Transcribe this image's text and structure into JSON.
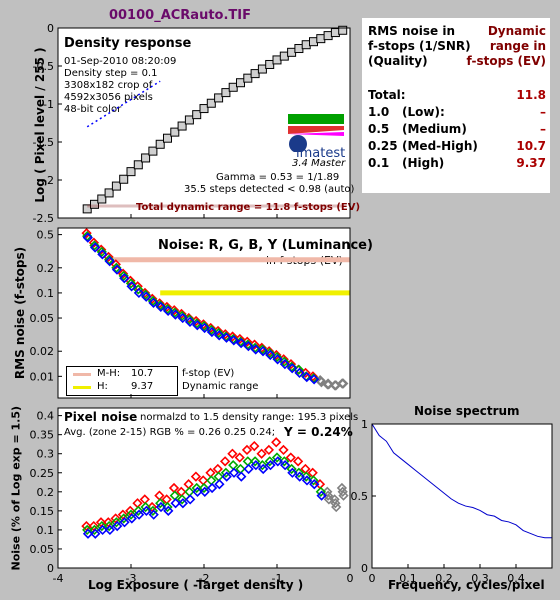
{
  "file_title": "00100_ACRauto.TIF",
  "colors": {
    "bg": "#c0c0c0",
    "title": "#6a0a6a",
    "darkred": "#800000",
    "value_red": "#aa0000"
  },
  "summary": {
    "header_left": [
      "RMS noise in",
      "f-stops (1/SNR)",
      "(Quality)"
    ],
    "header_right": [
      "Dynamic",
      "range in",
      "f-stops (EV)"
    ],
    "rows": [
      {
        "a": "Total:",
        "b": "",
        "v": "11.8"
      },
      {
        "a": "1.0",
        "b": "(Low):",
        "v": "–"
      },
      {
        "a": "0.5",
        "b": "(Medium)",
        "v": "–"
      },
      {
        "a": "0.25",
        "b": "(Med-High)",
        "v": "10.7"
      },
      {
        "a": "0.1",
        "b": "(High)",
        "v": "9.37"
      }
    ]
  },
  "panel1": {
    "heading": "Density response",
    "info": [
      "01-Sep-2010 08:20:09",
      "Density step = 0.1",
      "3308x182 crop of",
      "4592x3056 pixels",
      "48-bit color"
    ],
    "logo": "imatest",
    "logo_sub": "3.4  Master",
    "gamma": "Gamma = 0.53 = 1/1.89",
    "steps": "35.5 steps detected < 0.98 (auto)",
    "total_dr": "Total dynamic range = 11.8 f-stops (EV)",
    "ylabel": "Log ( Pixel level / 255 )"
  },
  "panel2": {
    "heading": "Noise: R, G, B, Y (Luminance)",
    "sub": "in f-stops (EV)",
    "ylabel": "RMS noise (f-stops)",
    "legend": [
      {
        "k": "M-H:",
        "v": "10.7",
        "color": "#f0b8a8"
      },
      {
        "k": "H:",
        "v": "9.37",
        "color": "#f0f000"
      }
    ],
    "legend_right": [
      "f-stop (EV)",
      "Dynamic range"
    ]
  },
  "panel3": {
    "heading": "Pixel noise",
    "line1": "normalzd to 1.5 density range: 195.3 pixels",
    "line2": "Avg. (zone 2-15) RGB % = 0.26  0.25  0.24;",
    "yval": "Y = 0.24%",
    "ylabel": "Noise (% of Log exp = 1.5)",
    "xlabel": "Log Exposure ( -Target density )"
  },
  "panel4": {
    "title": "Noise spectrum",
    "xlabel": "Frequency, cycles/pixel"
  },
  "chart_data": [
    {
      "type": "scatter",
      "title": "Density response",
      "ylabel": "Log ( Pixel level / 255 )",
      "xlim": [
        -4,
        0
      ],
      "ylim": [
        -2.5,
        0
      ],
      "yticks": [
        0,
        -0.5,
        -1,
        -1.5,
        -2,
        -2.5
      ],
      "density_x": [
        -3.6,
        -3.5,
        -3.4,
        -3.3,
        -3.2,
        -3.1,
        -3.0,
        -2.9,
        -2.8,
        -2.7,
        -2.6,
        -2.5,
        -2.4,
        -2.3,
        -2.2,
        -2.1,
        -2.0,
        -1.9,
        -1.8,
        -1.7,
        -1.6,
        -1.5,
        -1.4,
        -1.3,
        -1.2,
        -1.1,
        -1.0,
        -0.9,
        -0.8,
        -0.7,
        -0.6,
        -0.5,
        -0.4,
        -0.3,
        -0.2,
        -0.1
      ],
      "density_y": [
        -2.38,
        -2.32,
        -2.25,
        -2.17,
        -2.08,
        -1.99,
        -1.89,
        -1.8,
        -1.71,
        -1.62,
        -1.53,
        -1.45,
        -1.37,
        -1.29,
        -1.21,
        -1.14,
        -1.06,
        -0.99,
        -0.92,
        -0.85,
        -0.78,
        -0.72,
        -0.66,
        -0.6,
        -0.54,
        -0.48,
        -0.42,
        -0.37,
        -0.32,
        -0.27,
        -0.22,
        -0.18,
        -0.14,
        -0.1,
        -0.06,
        -0.03
      ],
      "fit_line": {
        "x": [
          -3.6,
          -2.6
        ],
        "y": [
          -1.3,
          -0.7
        ]
      }
    },
    {
      "type": "scatter",
      "title": "Noise: R, G, B, Y (Luminance)",
      "ylabel": "RMS noise (f-stops)",
      "yscale": "log",
      "xlim": [
        -4,
        0
      ],
      "yticks": [
        0.5,
        0.2,
        0.1,
        0.05,
        0.02,
        0.01
      ],
      "x": [
        -3.6,
        -3.5,
        -3.4,
        -3.3,
        -3.2,
        -3.1,
        -3.0,
        -2.9,
        -2.8,
        -2.7,
        -2.6,
        -2.5,
        -2.4,
        -2.3,
        -2.2,
        -2.1,
        -2.0,
        -1.9,
        -1.8,
        -1.7,
        -1.6,
        -1.5,
        -1.4,
        -1.3,
        -1.2,
        -1.1,
        -1.0,
        -0.9,
        -0.8,
        -0.7,
        -0.6,
        -0.5,
        -0.4,
        -0.3,
        -0.2,
        -0.1
      ],
      "series": [
        {
          "color": "#ff0000",
          "values": [
            0.52,
            0.4,
            0.33,
            0.27,
            0.22,
            0.17,
            0.14,
            0.12,
            0.1,
            0.085,
            0.075,
            0.068,
            0.062,
            0.056,
            0.05,
            0.046,
            0.042,
            0.038,
            0.035,
            0.032,
            0.03,
            0.028,
            0.026,
            0.024,
            0.022,
            0.02,
            0.018,
            0.016,
            0.014,
            0.012,
            0.011,
            0.01,
            0.009,
            0.008,
            0.0078,
            0.0082
          ]
        },
        {
          "color": "#00aa00",
          "values": [
            0.48,
            0.37,
            0.31,
            0.25,
            0.2,
            0.16,
            0.13,
            0.11,
            0.095,
            0.08,
            0.071,
            0.064,
            0.058,
            0.053,
            0.048,
            0.043,
            0.04,
            0.036,
            0.033,
            0.03,
            0.028,
            0.026,
            0.024,
            0.022,
            0.021,
            0.019,
            0.017,
            0.015,
            0.013,
            0.012,
            0.01,
            0.0095,
            0.0088,
            0.0082,
            0.0078,
            0.0082
          ]
        },
        {
          "color": "#0000ff",
          "values": [
            0.46,
            0.35,
            0.29,
            0.24,
            0.19,
            0.15,
            0.12,
            0.1,
            0.09,
            0.076,
            0.068,
            0.061,
            0.055,
            0.05,
            0.045,
            0.041,
            0.038,
            0.034,
            0.031,
            0.029,
            0.027,
            0.025,
            0.023,
            0.021,
            0.02,
            0.018,
            0.016,
            0.014,
            0.0125,
            0.011,
            0.0098,
            0.0092,
            0.0085,
            0.008,
            0.0078,
            0.0082
          ]
        }
      ],
      "bands": [
        {
          "name": "M-H",
          "y": 0.25,
          "x_from": -3.25
        },
        {
          "name": "H",
          "y": 0.1,
          "x_from": -2.6
        }
      ]
    },
    {
      "type": "scatter",
      "title": "Pixel noise",
      "ylabel": "Noise (% of Log exp = 1.5)",
      "xlabel": "Log Exposure ( -Target density )",
      "xlim": [
        -4,
        0
      ],
      "ylim": [
        0,
        0.42
      ],
      "xticks": [
        -4,
        -3,
        -2,
        -1,
        0
      ],
      "yticks": [
        0,
        0.05,
        0.1,
        0.15,
        0.2,
        0.25,
        0.3,
        0.35,
        0.4
      ],
      "x": [
        -3.6,
        -3.5,
        -3.4,
        -3.3,
        -3.2,
        -3.1,
        -3.0,
        -2.9,
        -2.8,
        -2.7,
        -2.6,
        -2.5,
        -2.4,
        -2.3,
        -2.2,
        -2.1,
        -2.0,
        -1.9,
        -1.8,
        -1.7,
        -1.6,
        -1.5,
        -1.4,
        -1.3,
        -1.2,
        -1.1,
        -1.0,
        -0.9,
        -0.8,
        -0.7,
        -0.6,
        -0.5,
        -0.4,
        -0.3,
        -0.2,
        -0.1
      ],
      "series": [
        {
          "color": "#ff0000",
          "values": [
            0.11,
            0.11,
            0.12,
            0.12,
            0.13,
            0.14,
            0.15,
            0.17,
            0.18,
            0.16,
            0.19,
            0.18,
            0.21,
            0.2,
            0.22,
            0.24,
            0.23,
            0.25,
            0.26,
            0.28,
            0.3,
            0.29,
            0.31,
            0.32,
            0.3,
            0.31,
            0.33,
            0.31,
            0.29,
            0.28,
            0.26,
            0.25,
            0.22,
            0.2,
            0.18,
            0.21
          ]
        },
        {
          "color": "#00aa00",
          "values": [
            0.1,
            0.1,
            0.11,
            0.11,
            0.12,
            0.13,
            0.14,
            0.15,
            0.16,
            0.15,
            0.17,
            0.16,
            0.19,
            0.18,
            0.2,
            0.21,
            0.21,
            0.23,
            0.24,
            0.25,
            0.27,
            0.26,
            0.28,
            0.28,
            0.27,
            0.28,
            0.29,
            0.28,
            0.26,
            0.25,
            0.24,
            0.23,
            0.2,
            0.19,
            0.17,
            0.2
          ]
        },
        {
          "color": "#0000ff",
          "values": [
            0.09,
            0.09,
            0.1,
            0.1,
            0.11,
            0.12,
            0.13,
            0.14,
            0.15,
            0.14,
            0.16,
            0.15,
            0.17,
            0.17,
            0.18,
            0.2,
            0.2,
            0.21,
            0.22,
            0.24,
            0.25,
            0.24,
            0.26,
            0.27,
            0.26,
            0.27,
            0.28,
            0.27,
            0.25,
            0.24,
            0.23,
            0.22,
            0.19,
            0.18,
            0.16,
            0.19
          ]
        }
      ]
    },
    {
      "type": "line",
      "title": "Noise spectrum",
      "xlabel": "Frequency, cycles/pixel",
      "xlim": [
        0,
        0.5
      ],
      "ylim": [
        0,
        1
      ],
      "xticks": [
        0,
        0.1,
        0.2,
        0.3,
        0.4
      ],
      "yticks": [
        0,
        0.5,
        1
      ],
      "x": [
        0,
        0.02,
        0.04,
        0.06,
        0.08,
        0.1,
        0.12,
        0.14,
        0.16,
        0.18,
        0.2,
        0.22,
        0.24,
        0.26,
        0.28,
        0.3,
        0.32,
        0.34,
        0.36,
        0.38,
        0.4,
        0.42,
        0.44,
        0.46,
        0.48,
        0.5
      ],
      "y": [
        1.0,
        0.92,
        0.88,
        0.8,
        0.76,
        0.72,
        0.68,
        0.64,
        0.6,
        0.56,
        0.52,
        0.48,
        0.45,
        0.43,
        0.42,
        0.4,
        0.37,
        0.36,
        0.33,
        0.32,
        0.3,
        0.26,
        0.24,
        0.22,
        0.21,
        0.21
      ]
    }
  ]
}
